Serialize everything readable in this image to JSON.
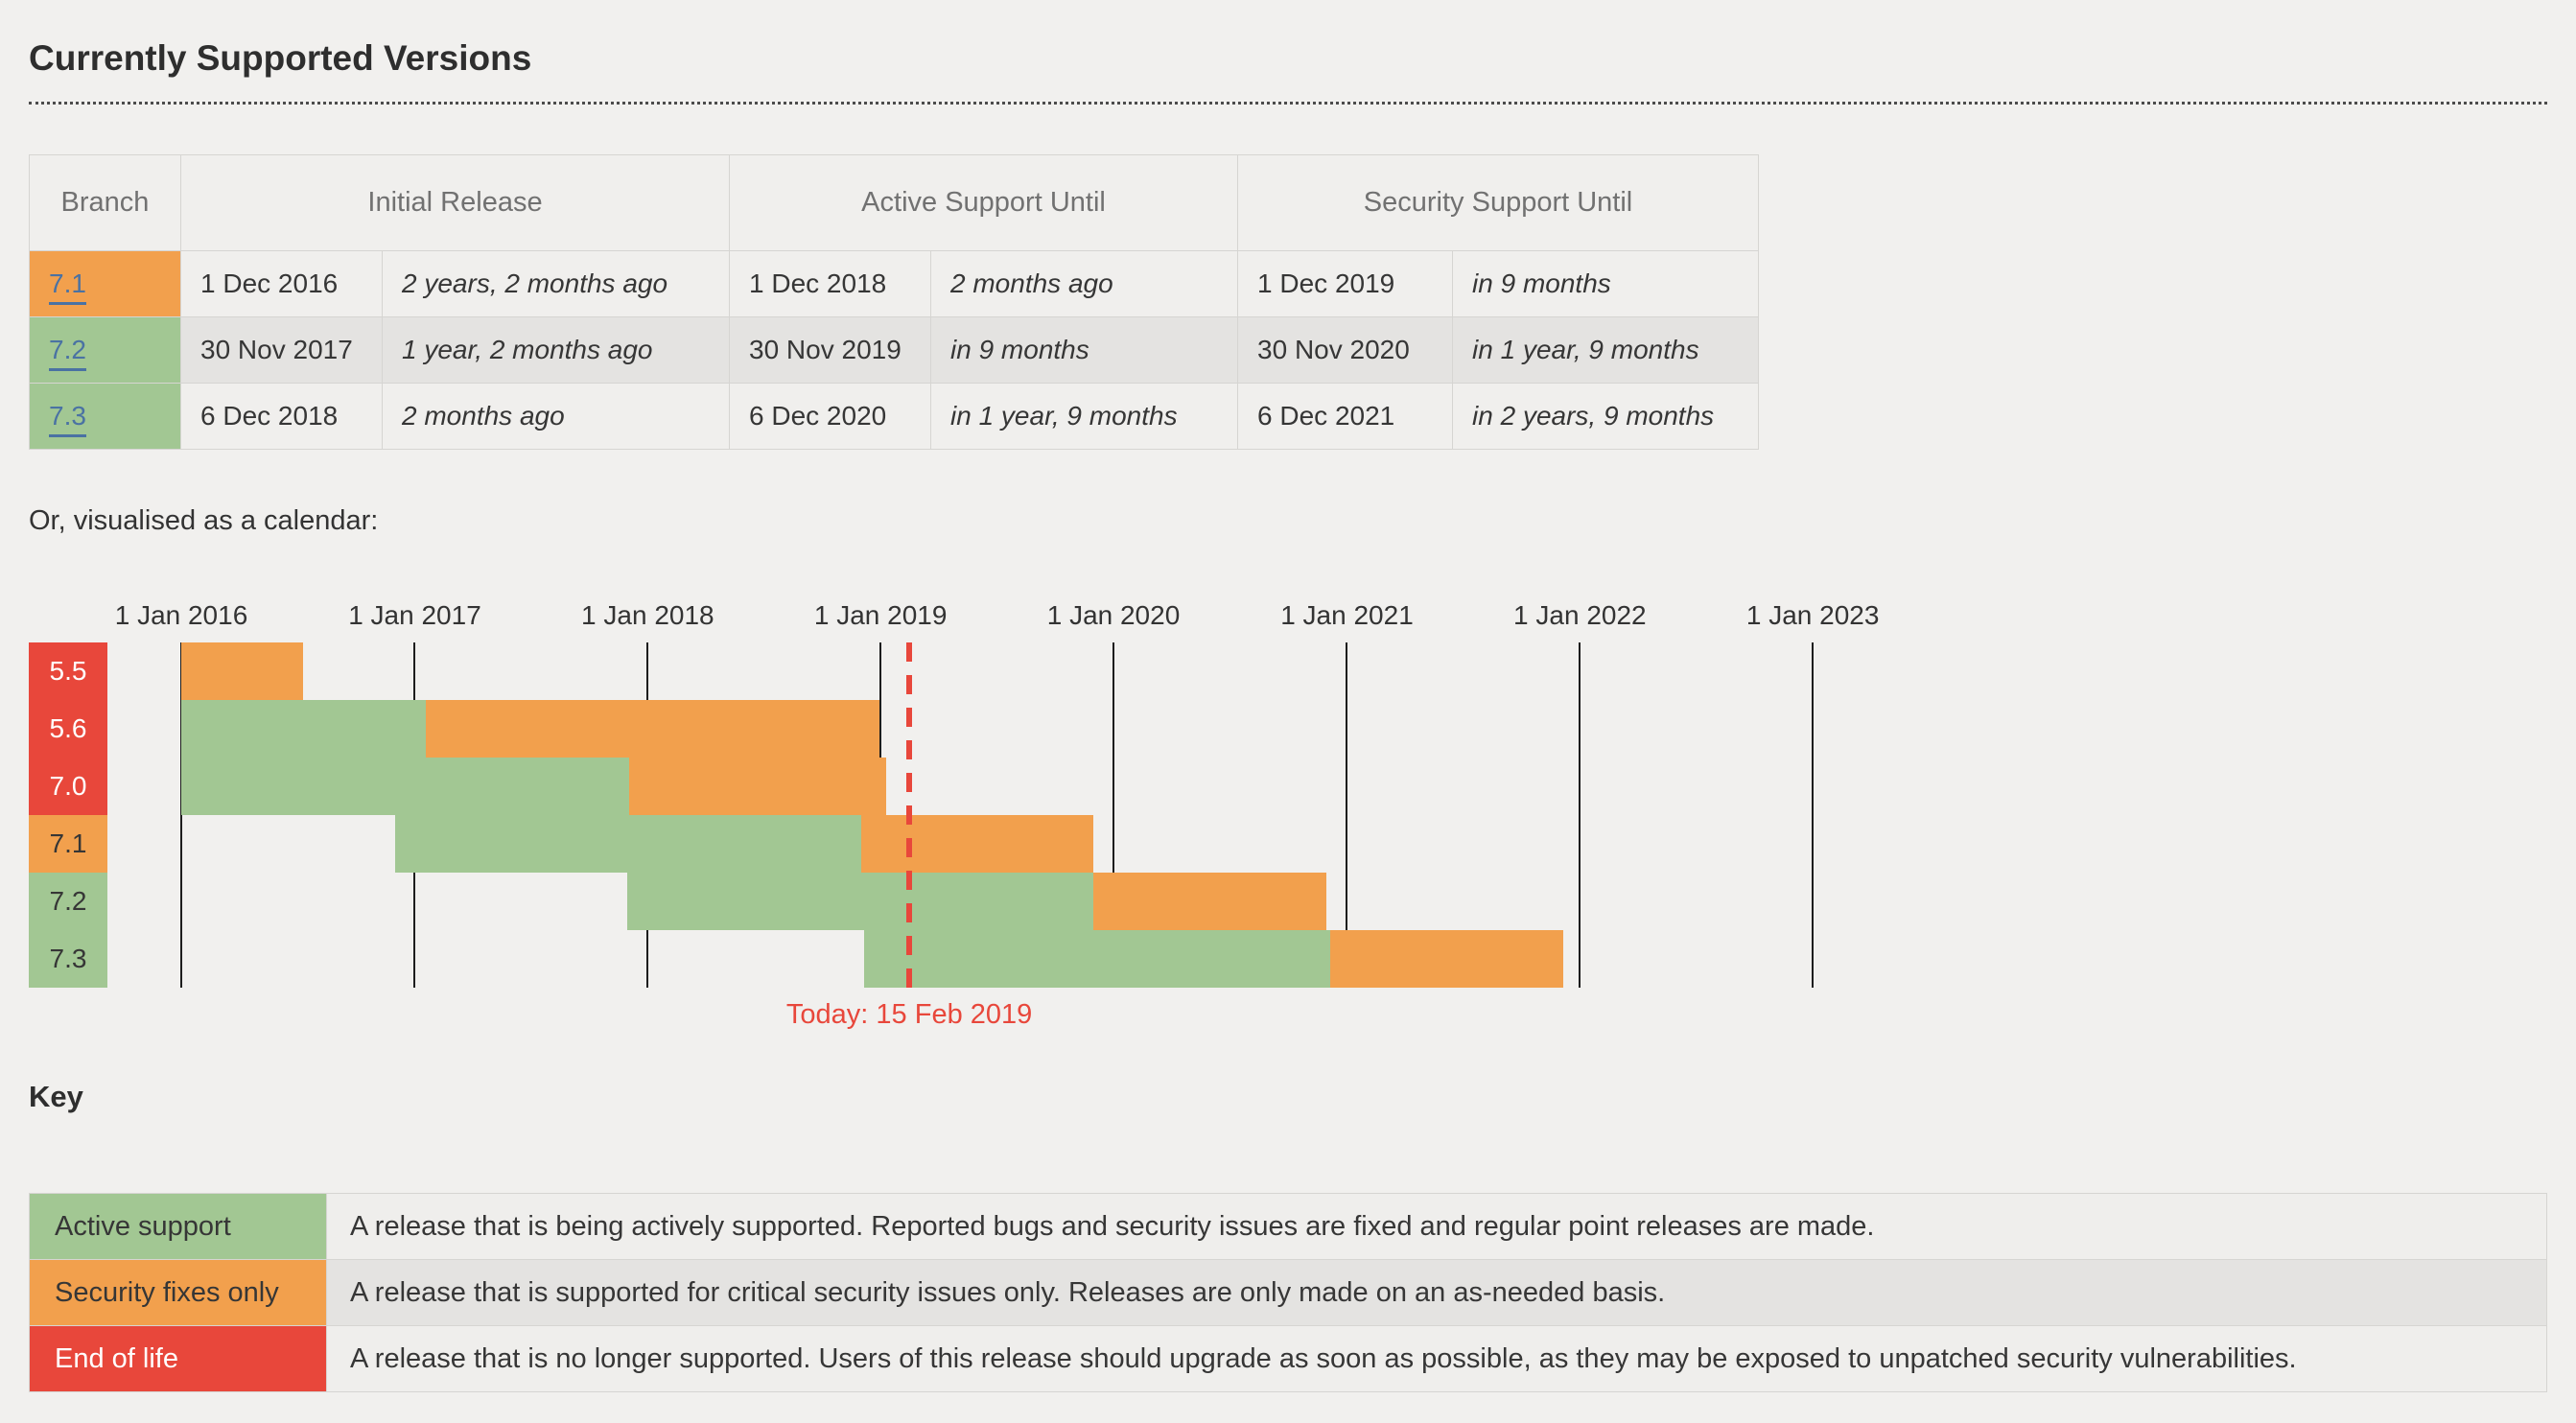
{
  "page": {
    "title": "Currently Supported Versions",
    "calendar_intro": "Or, visualised as a calendar:",
    "key_heading": "Key"
  },
  "colors": {
    "active_support": "#a2c793",
    "security_fixes": "#f2a04d",
    "end_of_life": "#e8473b",
    "today_marker": "#e8473b",
    "link": "#4a72a3"
  },
  "support_table": {
    "headers": {
      "branch": "Branch",
      "initial_release": "Initial Release",
      "active_support": "Active Support Until",
      "security_support": "Security Support Until"
    },
    "rows": [
      {
        "branch": "7.1",
        "status": "security",
        "initial_release": "1 Dec 2016",
        "initial_release_rel": "2 years, 2 months ago",
        "active_until": "1 Dec 2018",
        "active_until_rel": "2 months ago",
        "security_until": "1 Dec 2019",
        "security_until_rel": "in 9 months"
      },
      {
        "branch": "7.2",
        "status": "active",
        "initial_release": "30 Nov 2017",
        "initial_release_rel": "1 year, 2 months ago",
        "active_until": "30 Nov 2019",
        "active_until_rel": "in 9 months",
        "security_until": "30 Nov 2020",
        "security_until_rel": "in 1 year, 9 months"
      },
      {
        "branch": "7.3",
        "status": "active",
        "initial_release": "6 Dec 2018",
        "initial_release_rel": "2 months ago",
        "active_until": "6 Dec 2020",
        "active_until_rel": "in 1 year, 9 months",
        "security_until": "6 Dec 2021",
        "security_until_rel": "in 2 years, 9 months"
      }
    ]
  },
  "chart_data": {
    "type": "gantt-calendar",
    "x_axis": {
      "ticks": [
        {
          "label": "1 Jan 2016",
          "date": "2016-01-01"
        },
        {
          "label": "1 Jan 2017",
          "date": "2017-01-01"
        },
        {
          "label": "1 Jan 2018",
          "date": "2018-01-01"
        },
        {
          "label": "1 Jan 2019",
          "date": "2019-01-01"
        },
        {
          "label": "1 Jan 2020",
          "date": "2020-01-01"
        },
        {
          "label": "1 Jan 2021",
          "date": "2021-01-01"
        },
        {
          "label": "1 Jan 2022",
          "date": "2022-01-01"
        },
        {
          "label": "1 Jan 2023",
          "date": "2023-01-01"
        }
      ]
    },
    "rows": [
      {
        "branch": "5.5",
        "status": "eol",
        "segments": [
          {
            "type": "security",
            "start": "2016-01-01",
            "end": "2016-07-10"
          }
        ]
      },
      {
        "branch": "5.6",
        "status": "eol",
        "segments": [
          {
            "type": "active",
            "start": "2016-01-01",
            "end": "2017-01-19"
          },
          {
            "type": "security",
            "start": "2017-01-19",
            "end": "2018-12-31"
          }
        ]
      },
      {
        "branch": "7.0",
        "status": "eol",
        "segments": [
          {
            "type": "active",
            "start": "2016-01-01",
            "end": "2017-12-03"
          },
          {
            "type": "security",
            "start": "2017-12-03",
            "end": "2019-01-10"
          }
        ]
      },
      {
        "branch": "7.1",
        "status": "security",
        "segments": [
          {
            "type": "active",
            "start": "2016-12-01",
            "end": "2018-12-01"
          },
          {
            "type": "security",
            "start": "2018-12-01",
            "end": "2019-12-01"
          }
        ]
      },
      {
        "branch": "7.2",
        "status": "active",
        "segments": [
          {
            "type": "active",
            "start": "2017-11-30",
            "end": "2019-11-30"
          },
          {
            "type": "security",
            "start": "2019-11-30",
            "end": "2020-11-30"
          }
        ]
      },
      {
        "branch": "7.3",
        "status": "active",
        "segments": [
          {
            "type": "active",
            "start": "2018-12-06",
            "end": "2020-12-06"
          },
          {
            "type": "security",
            "start": "2020-12-06",
            "end": "2021-12-06"
          }
        ]
      }
    ],
    "today": {
      "date": "2019-02-15",
      "label": "Today: 15 Feb 2019"
    }
  },
  "key_table": {
    "rows": [
      {
        "label": "Active support",
        "status": "active",
        "description": "A release that is being actively supported. Reported bugs and security issues are fixed and regular point releases are made."
      },
      {
        "label": "Security fixes only",
        "status": "security",
        "description": "A release that is supported for critical security issues only. Releases are only made on an as-needed basis."
      },
      {
        "label": "End of life",
        "status": "eol",
        "description": "A release that is no longer supported. Users of this release should upgrade as soon as possible, as they may be exposed to unpatched security vulnerabilities."
      }
    ]
  }
}
